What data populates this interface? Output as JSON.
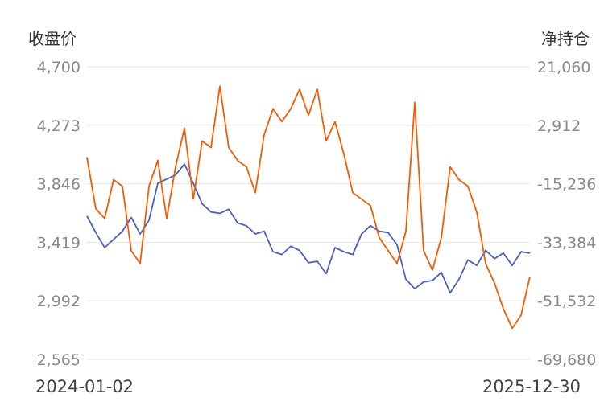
{
  "chart_data": {
    "type": "line",
    "left_axis_title": "收盘价",
    "right_axis_title": "净持仓",
    "left_ticks": [
      "4,700",
      "4,273",
      "3,846",
      "3,419",
      "2,992",
      "2,565"
    ],
    "right_ticks": [
      "21,060",
      "2,912",
      "-15,236",
      "-33,384",
      "-51,532",
      "-69,680"
    ],
    "left_ylim": [
      2565,
      4700
    ],
    "right_ylim": [
      -69680,
      21060
    ],
    "x_start_label": "2024-01-02",
    "x_end_label": "2025-12-30",
    "grid": true,
    "series": [
      {
        "axis": "left",
        "color": "#4a5fc1",
        "x": [
          0,
          0.02,
          0.04,
          0.06,
          0.08,
          0.1,
          0.12,
          0.14,
          0.16,
          0.18,
          0.2,
          0.22,
          0.24,
          0.26,
          0.28,
          0.3,
          0.32,
          0.34,
          0.36,
          0.38,
          0.4,
          0.42,
          0.44,
          0.46,
          0.48,
          0.5,
          0.52,
          0.54,
          0.56,
          0.58,
          0.6,
          0.62,
          0.64,
          0.66,
          0.68,
          0.7,
          0.72,
          0.74,
          0.76,
          0.78,
          0.8,
          0.82,
          0.84,
          0.86,
          0.88,
          0.9,
          0.92,
          0.94,
          0.96,
          0.98,
          1
        ],
        "values": [
          3610,
          3490,
          3380,
          3440,
          3500,
          3600,
          3480,
          3580,
          3850,
          3880,
          3910,
          3990,
          3850,
          3700,
          3640,
          3630,
          3660,
          3560,
          3540,
          3480,
          3500,
          3350,
          3330,
          3390,
          3360,
          3270,
          3280,
          3190,
          3380,
          3350,
          3330,
          3480,
          3540,
          3500,
          3490,
          3400,
          3150,
          3080,
          3130,
          3140,
          3200,
          3050,
          3150,
          3290,
          3250,
          3360,
          3300,
          3340,
          3250,
          3350,
          3340
        ]
      },
      {
        "axis": "right",
        "color": "#f25c05",
        "x": [
          0,
          0.02,
          0.04,
          0.06,
          0.08,
          0.1,
          0.12,
          0.14,
          0.16,
          0.18,
          0.2,
          0.22,
          0.24,
          0.26,
          0.28,
          0.3,
          0.32,
          0.34,
          0.36,
          0.38,
          0.4,
          0.42,
          0.44,
          0.46,
          0.48,
          0.5,
          0.52,
          0.54,
          0.56,
          0.58,
          0.6,
          0.62,
          0.64,
          0.66,
          0.68,
          0.7,
          0.72,
          0.74,
          0.76,
          0.78,
          0.8,
          0.82,
          0.84,
          0.86,
          0.88,
          0.9,
          0.92,
          0.94,
          0.96,
          0.98,
          1
        ],
        "values": [
          -7000,
          -23000,
          -26000,
          -14000,
          -16000,
          -36000,
          -40000,
          -16000,
          -8000,
          -26000,
          -10000,
          2000,
          -20000,
          -2000,
          -4000,
          15000,
          -4000,
          -8000,
          -10000,
          -18000,
          0,
          8000,
          4000,
          8000,
          14000,
          6000,
          14000,
          -2000,
          4000,
          -6000,
          -18000,
          -20000,
          -22000,
          -32000,
          -36000,
          -40000,
          -30000,
          10000,
          -36000,
          -42000,
          -32000,
          -10000,
          -14000,
          -16000,
          -24000,
          -40000,
          -46000,
          -54000,
          -60000,
          -56000,
          -44000
        ]
      }
    ]
  }
}
